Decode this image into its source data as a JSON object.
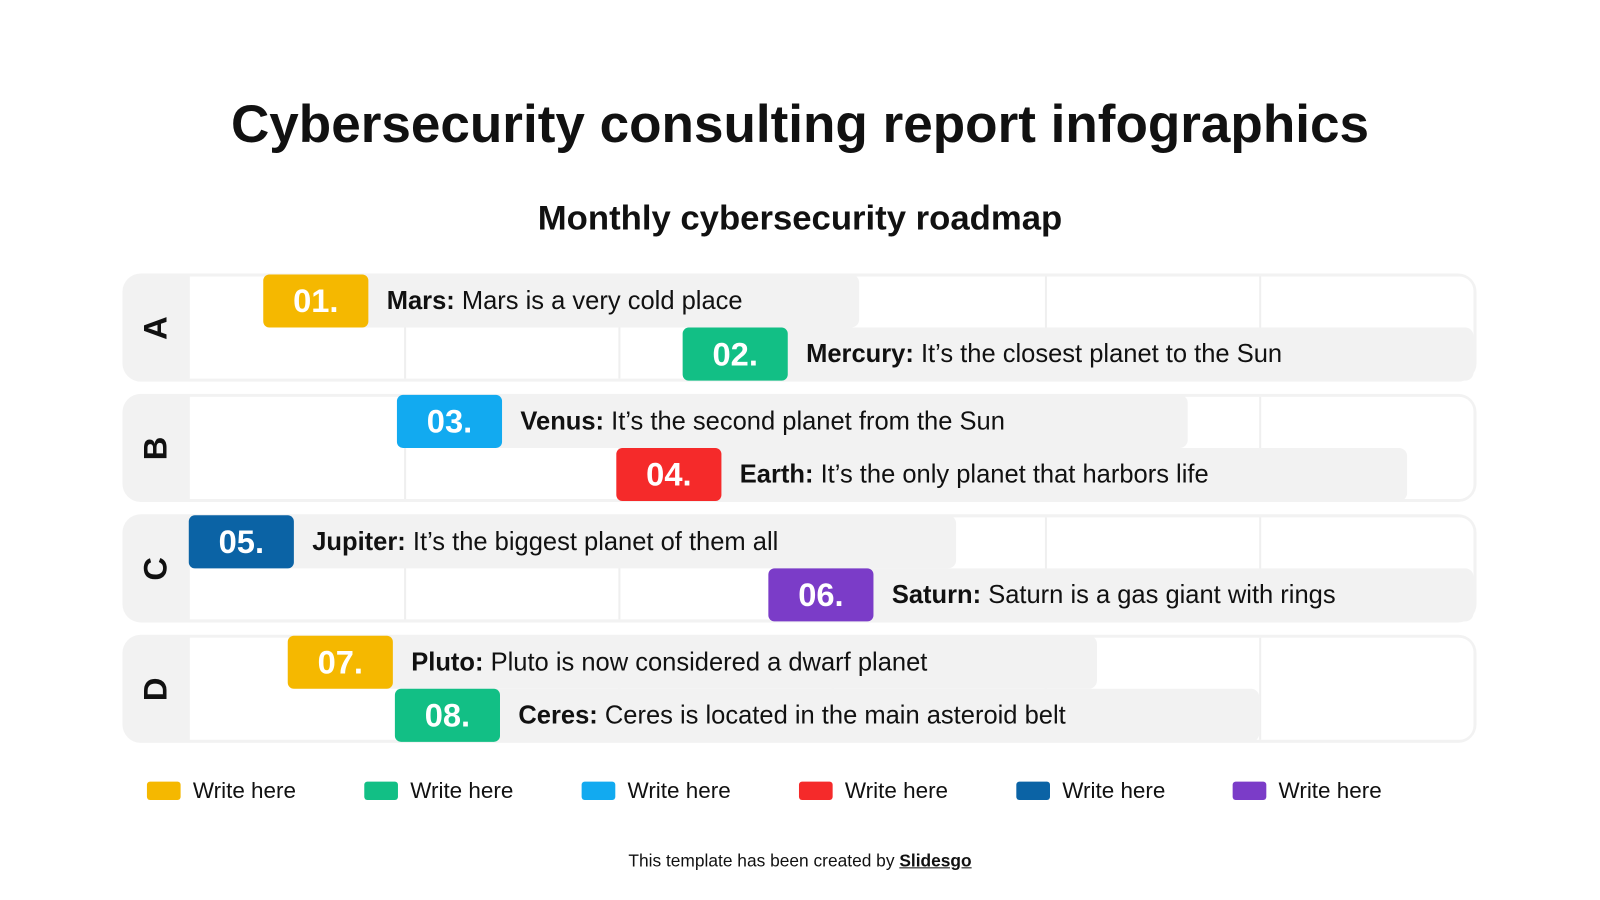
{
  "title": "Cybersecurity consulting report infographics",
  "subtitle": "Monthly cybersecurity roadmap",
  "colors": {
    "yellow": "#f5b800",
    "green": "#12bf85",
    "blue": "#12aaf0",
    "red": "#f52a2a",
    "dark_blue": "#0b63a5",
    "purple": "#7b3cc8"
  },
  "rows": [
    {
      "label": "A",
      "items": [
        {
          "number": "01.",
          "name": "Mars:",
          "text": " Mars is a very cold place",
          "color": "#f5b800"
        },
        {
          "number": "02.",
          "name": "Mercury:",
          "text": " It’s the closest planet to the Sun",
          "color": "#12bf85"
        }
      ]
    },
    {
      "label": "B",
      "items": [
        {
          "number": "03.",
          "name": "Venus:",
          "text": " It’s the second planet from the Sun",
          "color": "#12aaf0"
        },
        {
          "number": "04.",
          "name": "Earth:",
          "text": " It’s the only planet that harbors life",
          "color": "#f52a2a"
        }
      ]
    },
    {
      "label": "C",
      "items": [
        {
          "number": "05.",
          "name": "Jupiter:",
          "text": " It’s the biggest planet of them all",
          "color": "#0b63a5"
        },
        {
          "number": "06.",
          "name": "Saturn:",
          "text": " Saturn is a gas giant with rings",
          "color": "#7b3cc8"
        }
      ]
    },
    {
      "label": "D",
      "items": [
        {
          "number": "07.",
          "name": "Pluto:",
          "text": " Pluto is now considered a dwarf planet",
          "color": "#f5b800"
        },
        {
          "number": "08.",
          "name": "Ceres:",
          "text": " Ceres is located in the main asteroid belt",
          "color": "#12bf85"
        }
      ]
    }
  ],
  "legend": [
    {
      "label": "Write here",
      "color": "#f5b800"
    },
    {
      "label": "Write here",
      "color": "#12bf85"
    },
    {
      "label": "Write here",
      "color": "#12aaf0"
    },
    {
      "label": "Write here",
      "color": "#f52a2a"
    },
    {
      "label": "Write here",
      "color": "#0b63a5"
    },
    {
      "label": "Write here",
      "color": "#7b3cc8"
    }
  ],
  "credit": {
    "text": "This template has been created by ",
    "link": "Slidesgo"
  }
}
